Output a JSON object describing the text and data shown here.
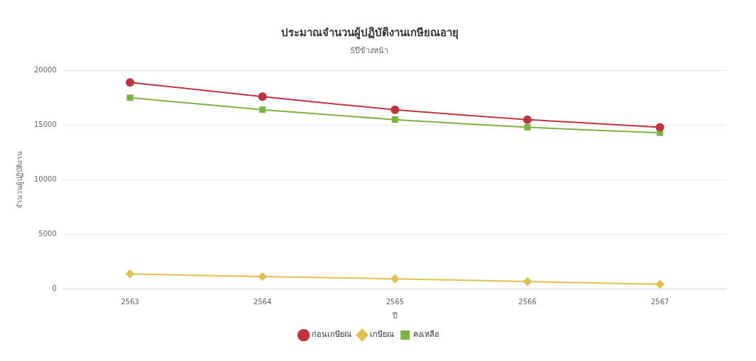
{
  "chart_data": {
    "type": "line",
    "title": "ประมาณจำนวนผู้ปฏิบัติงานเกษียณอายุ",
    "subtitle": "5ปีข้างหน้า",
    "xlabel": "ปี",
    "ylabel": "จำนวนผู้ปฏิบัติงาน",
    "categories": [
      "2563",
      "2564",
      "2565",
      "2566",
      "2567"
    ],
    "series": [
      {
        "name": "ก่อนเกษียณ",
        "color": "#c0343c",
        "marker": "circle",
        "values": [
          18900,
          17600,
          16400,
          15500,
          14800
        ]
      },
      {
        "name": "เกษียณ",
        "color": "#e0c050",
        "marker": "diamond",
        "values": [
          1400,
          1150,
          950,
          700,
          450
        ]
      },
      {
        "name": "คงเหลือ",
        "color": "#7cb342",
        "marker": "square",
        "values": [
          17500,
          16400,
          15500,
          14800,
          14300
        ]
      }
    ],
    "ylim": [
      0,
      20000
    ],
    "yticks": [
      0,
      5000,
      10000,
      15000,
      20000
    ],
    "grid": "y",
    "legend": "bottom"
  }
}
